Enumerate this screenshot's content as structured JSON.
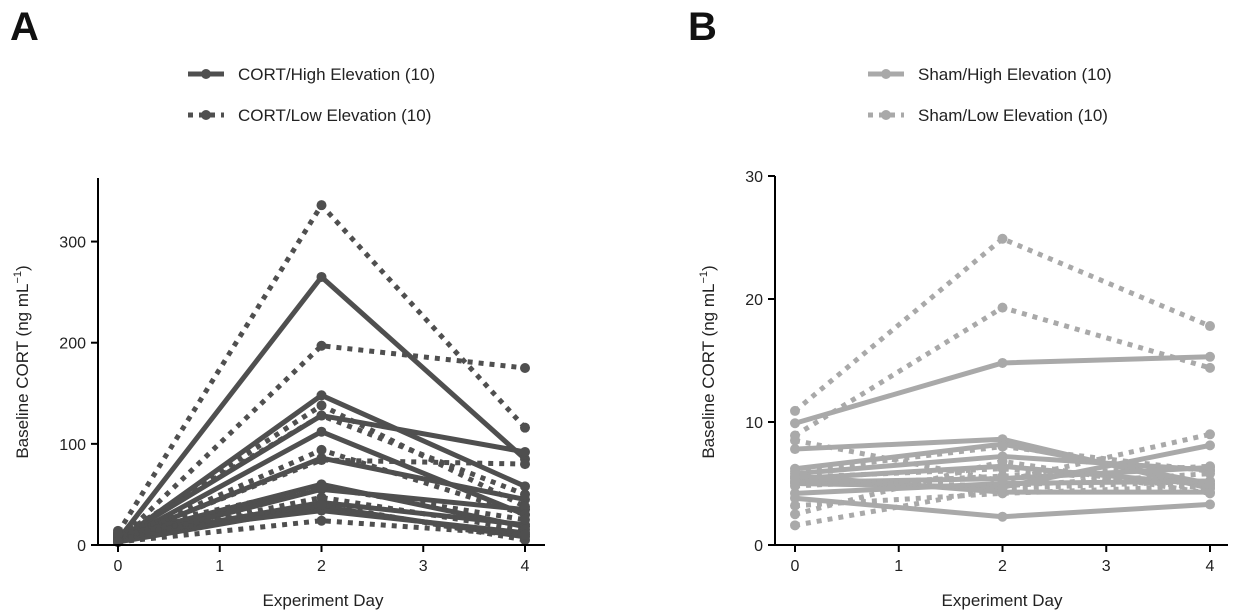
{
  "chart_data": [
    {
      "panel": "A",
      "type": "line",
      "xlabel": "Experiment Day",
      "ylabel": "Baseline CORT (ng mL",
      "ylabel_sup": "−1",
      "ylabel_tail": ")",
      "xlim": [
        0,
        4
      ],
      "ylim": [
        0,
        350
      ],
      "xticks": [
        0,
        1,
        2,
        3,
        4
      ],
      "yticks": [
        0,
        100,
        200,
        300
      ],
      "x": [
        0,
        2,
        4
      ],
      "color": "#4f4f4f",
      "legend": [
        {
          "label": "CORT/High Elevation (10)",
          "style": "solid"
        },
        {
          "label": "CORT/Low Elevation (10)",
          "style": "dotted"
        }
      ],
      "series": [
        {
          "group": "high",
          "values": [
            5,
            265,
            85
          ]
        },
        {
          "group": "high",
          "values": [
            4,
            148,
            58
          ]
        },
        {
          "group": "high",
          "values": [
            6,
            128,
            92
          ]
        },
        {
          "group": "high",
          "values": [
            3,
            112,
            30
          ]
        },
        {
          "group": "high",
          "values": [
            5,
            86,
            45
          ]
        },
        {
          "group": "high",
          "values": [
            8,
            60,
            18
          ]
        },
        {
          "group": "high",
          "values": [
            4,
            55,
            35
          ]
        },
        {
          "group": "high",
          "values": [
            6,
            42,
            20
          ]
        },
        {
          "group": "high",
          "values": [
            3,
            38,
            8
          ]
        },
        {
          "group": "high",
          "values": [
            10,
            34,
            12
          ]
        },
        {
          "group": "low",
          "values": [
            12,
            336,
            116
          ]
        },
        {
          "group": "low",
          "values": [
            4,
            197,
            175
          ]
        },
        {
          "group": "low",
          "values": [
            7,
            138,
            38
          ]
        },
        {
          "group": "low",
          "values": [
            9,
            128,
            50
          ]
        },
        {
          "group": "low",
          "values": [
            5,
            94,
            30
          ]
        },
        {
          "group": "low",
          "values": [
            6,
            84,
            80
          ]
        },
        {
          "group": "low",
          "values": [
            14,
            57,
            25
          ]
        },
        {
          "group": "low",
          "values": [
            5,
            47,
            15
          ]
        },
        {
          "group": "low",
          "values": [
            11,
            40,
            5
          ]
        },
        {
          "group": "low",
          "values": [
            3,
            24,
            10
          ]
        }
      ]
    },
    {
      "panel": "B",
      "type": "line",
      "xlabel": "Experiment Day",
      "ylabel": "Baseline CORT (ng mL",
      "ylabel_sup": "−1",
      "ylabel_tail": ")",
      "xlim": [
        0,
        4
      ],
      "ylim": [
        0,
        30
      ],
      "xticks": [
        0,
        1,
        2,
        3,
        4
      ],
      "yticks": [
        0,
        10,
        20,
        30
      ],
      "x": [
        0,
        2,
        4
      ],
      "color": "#a9a9a9",
      "legend": [
        {
          "label": "Sham/High Elevation (10)",
          "style": "solid"
        },
        {
          "label": "Sham/Low Elevation (10)",
          "style": "dotted"
        }
      ],
      "series": [
        {
          "group": "high",
          "values": [
            9.9,
            14.8,
            15.3
          ]
        },
        {
          "group": "high",
          "values": [
            7.8,
            8.6,
            4.6
          ]
        },
        {
          "group": "high",
          "values": [
            6.2,
            8.2,
            5.0
          ]
        },
        {
          "group": "high",
          "values": [
            5.8,
            7.2,
            6.1
          ]
        },
        {
          "group": "high",
          "values": [
            5.4,
            6.4,
            4.9
          ]
        },
        {
          "group": "high",
          "values": [
            5.1,
            5.4,
            6.3
          ]
        },
        {
          "group": "high",
          "values": [
            5.0,
            4.7,
            8.1
          ]
        },
        {
          "group": "high",
          "values": [
            5.6,
            4.3,
            4.3
          ]
        },
        {
          "group": "high",
          "values": [
            4.2,
            5.0,
            5.2
          ]
        },
        {
          "group": "high",
          "values": [
            3.8,
            2.3,
            3.3
          ]
        },
        {
          "group": "low",
          "values": [
            10.9,
            24.9,
            17.8
          ]
        },
        {
          "group": "low",
          "values": [
            8.9,
            19.3,
            14.4
          ]
        },
        {
          "group": "low",
          "values": [
            8.5,
            5.2,
            9.0
          ]
        },
        {
          "group": "low",
          "values": [
            6.0,
            8.0,
            6.0
          ]
        },
        {
          "group": "low",
          "values": [
            5.5,
            6.2,
            4.6
          ]
        },
        {
          "group": "low",
          "values": [
            5.2,
            4.8,
            5.8
          ]
        },
        {
          "group": "low",
          "values": [
            4.8,
            5.6,
            6.4
          ]
        },
        {
          "group": "low",
          "values": [
            3.2,
            4.2,
            4.8
          ]
        },
        {
          "group": "low",
          "values": [
            2.5,
            6.8,
            4.2
          ]
        },
        {
          "group": "low",
          "values": [
            1.6,
            4.6,
            5.2
          ]
        }
      ]
    }
  ]
}
